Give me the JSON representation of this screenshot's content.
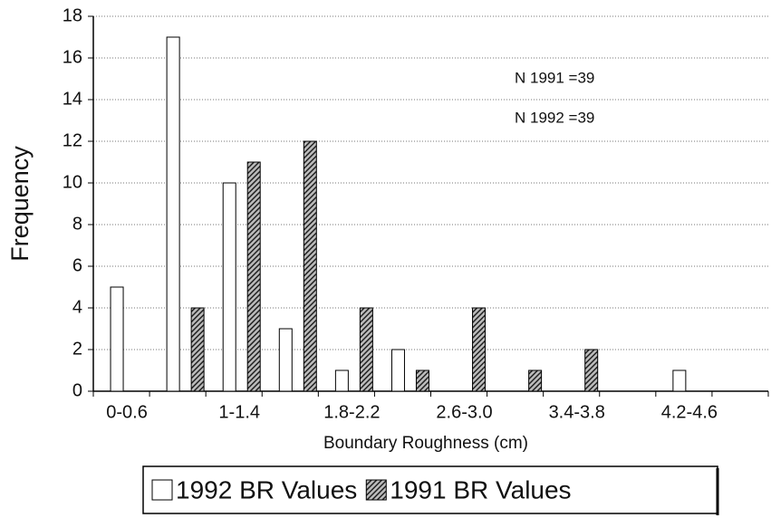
{
  "chart_data": {
    "type": "bar",
    "x_label": "Boundary Roughness (cm)",
    "y_label": "Frequency",
    "annotations": [
      "N 1991 =39",
      "N 1992 =39"
    ],
    "categories": [
      "0-0.6",
      null,
      "1-1.4",
      null,
      "1.8-2.2",
      null,
      "2.6-3.0",
      null,
      "3.4-3.8",
      null,
      "4.2-4.6",
      null
    ],
    "series": [
      {
        "name": "1992 BR Values",
        "color": "#ffffff",
        "pattern": "solid",
        "values": [
          5,
          17,
          10,
          3,
          1,
          2,
          0,
          0,
          0,
          0,
          1,
          0
        ]
      },
      {
        "name": "1991 BR Values",
        "color": "#333333",
        "pattern": "hatch",
        "values": [
          0,
          4,
          11,
          12,
          4,
          1,
          4,
          1,
          2,
          0,
          0,
          0
        ]
      }
    ],
    "ylim": [
      0,
      18
    ],
    "yticks": [
      0,
      2,
      4,
      6,
      8,
      10,
      12,
      14,
      16,
      18
    ],
    "grid": true,
    "legend": "bottom"
  }
}
